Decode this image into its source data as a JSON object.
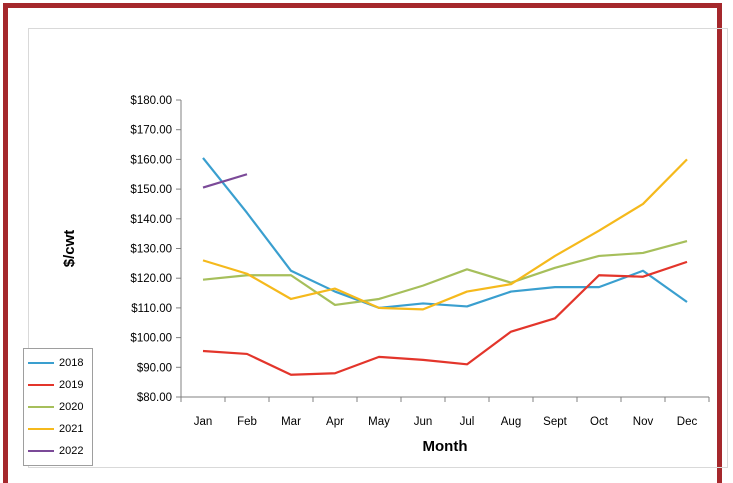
{
  "chart_data": {
    "type": "line",
    "xlabel": "Month",
    "ylabel": "$/cwt",
    "categories": [
      "Jan",
      "Feb",
      "Mar",
      "Apr",
      "May",
      "Jun",
      "Jul",
      "Aug",
      "Sept",
      "Oct",
      "Nov",
      "Dec"
    ],
    "ylim": [
      80,
      180
    ],
    "yticks": [
      "$80.00",
      "$90.00",
      "$100.00",
      "$110.00",
      "$120.00",
      "$130.00",
      "$140.00",
      "$150.00",
      "$160.00",
      "$170.00",
      "$180.00"
    ],
    "yticks_values": [
      80,
      90,
      100,
      110,
      120,
      130,
      140,
      150,
      160,
      170,
      180
    ],
    "grid": false,
    "legend_position": "bottom-left",
    "series": [
      {
        "name": "2018",
        "color": "#3a9fcf",
        "values": [
          160.5,
          142,
          122.5,
          115.5,
          110,
          111.5,
          110.5,
          115.5,
          117,
          117,
          122.5,
          112
        ]
      },
      {
        "name": "2019",
        "color": "#e3352b",
        "values": [
          95.5,
          94.5,
          87.5,
          88,
          93.5,
          92.5,
          91,
          102,
          106.5,
          121,
          120.5,
          125.5
        ]
      },
      {
        "name": "2020",
        "color": "#a6bf5b",
        "values": [
          119.5,
          121,
          121,
          111,
          113,
          117.5,
          123,
          118.5,
          123.5,
          127.5,
          128.5,
          132.5
        ]
      },
      {
        "name": "2021",
        "color": "#f5b91c",
        "values": [
          126,
          121.5,
          113,
          116.5,
          110,
          109.5,
          115.5,
          118,
          127.5,
          136,
          145,
          160
        ]
      },
      {
        "name": "2022",
        "color": "#7b4a98",
        "values": [
          150.5,
          155,
          null,
          null,
          null,
          null,
          null,
          null,
          null,
          null,
          null,
          null
        ]
      }
    ]
  }
}
